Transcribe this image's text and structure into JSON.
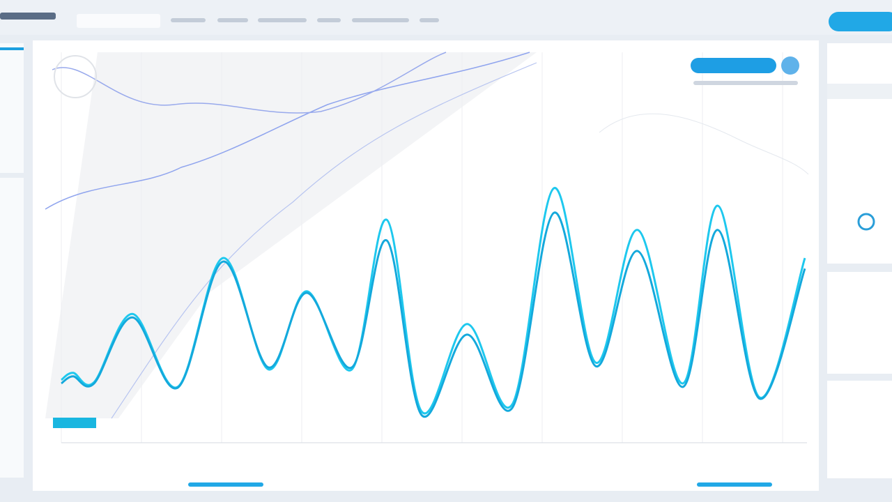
{
  "chart_data": {
    "type": "line",
    "x": [
      0,
      17,
      47,
      102,
      167,
      232,
      297,
      352,
      417,
      467,
      517,
      582,
      647,
      707,
      767,
      827,
      892,
      942,
      1002,
      1067
    ],
    "xlim": [
      0,
      1070
    ],
    "ylim": [
      0,
      100
    ],
    "series": [
      {
        "color": "#1ec8ee",
        "values": [
          16.1,
          17.9,
          15.5,
          33.0,
          14.3,
          47.3,
          18.8,
          38.8,
          18.8,
          57.1,
          8.0,
          30.4,
          9.8,
          65.2,
          20.5,
          54.5,
          15.2,
          60.7,
          11.6,
          47.3
        ]
      },
      {
        "color": "#14a9dc",
        "values": [
          15.2,
          17.0,
          15.2,
          32.1,
          14.1,
          46.4,
          19.3,
          38.4,
          19.3,
          51.8,
          7.1,
          27.7,
          8.9,
          58.9,
          19.6,
          49.1,
          14.3,
          54.5,
          11.3,
          44.6
        ]
      }
    ]
  }
}
